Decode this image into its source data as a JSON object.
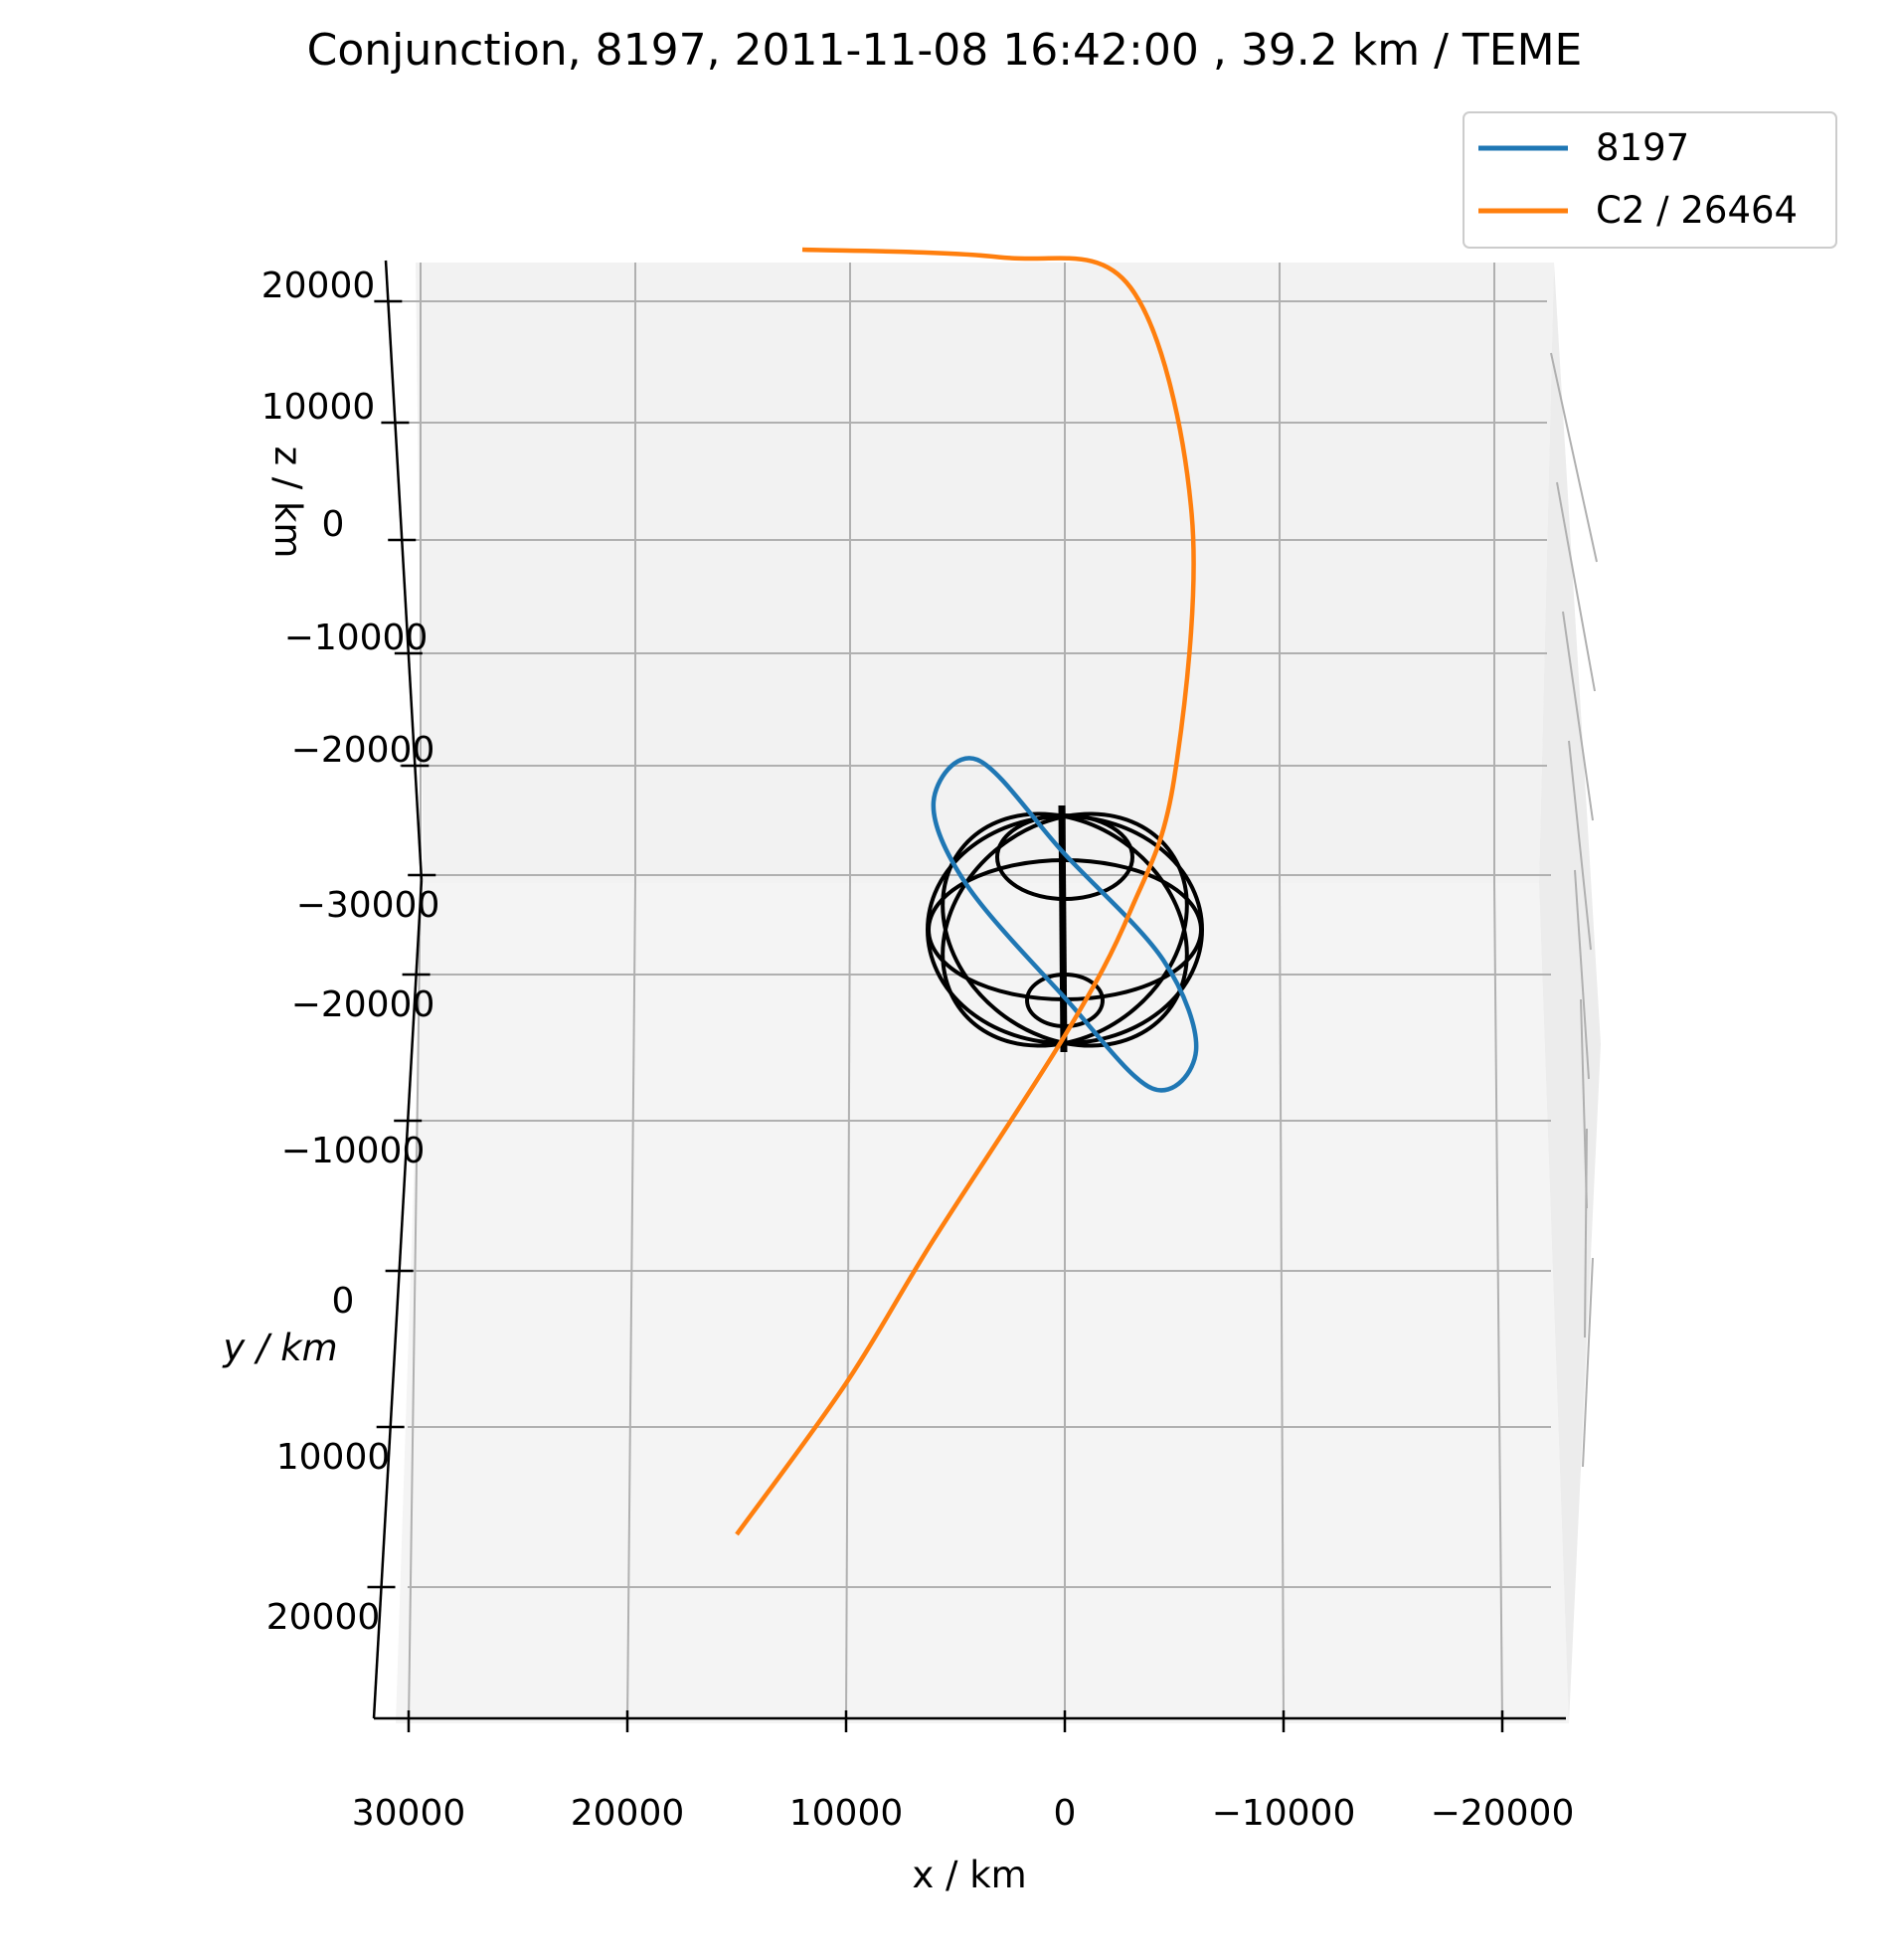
{
  "chart_data": {
    "type": "3d-line",
    "title": "Conjunction, 8197, 2011-11-08 16:42:00 , 39.2 km / TEME",
    "xlabel": "x / km",
    "ylabel": "y / km",
    "zlabel": "z / km",
    "x_ticks": [
      "30000",
      "20000",
      "10000",
      "0",
      "−10000",
      "−20000"
    ],
    "y_ticks": [
      "−30000",
      "−20000",
      "−10000",
      "0",
      "10000",
      "20000"
    ],
    "z_ticks": [
      "20000",
      "10000",
      "0",
      "−10000",
      "−20000"
    ],
    "xlim": [
      30000,
      -22000
    ],
    "ylim": [
      -30000,
      20000
    ],
    "zlim": [
      -20000,
      20000
    ],
    "grid": true,
    "legend_position": "top-right",
    "series": [
      {
        "name": "8197",
        "color": "#1f77b4",
        "description_kind": "closed orbit ellipse",
        "points": [
          [
            6000,
            -3400
          ],
          [
            4500,
            -1200
          ],
          [
            0,
            1800
          ],
          [
            -4000,
            4200
          ],
          [
            -6000,
            3200
          ],
          [
            -4500,
            800
          ],
          [
            0,
            -2000
          ],
          [
            4000,
            -4500
          ],
          [
            6000,
            -3400
          ]
        ]
      },
      {
        "name": "C2 / 26464",
        "color": "#ff7f0e",
        "description_kind": "open trajectory",
        "points": [
          [
            12000,
            -18000
          ],
          [
            3000,
            -17800
          ],
          [
            -3000,
            -17000
          ],
          [
            -5800,
            -11000
          ],
          [
            -5000,
            -4000
          ],
          [
            -3000,
            -500
          ],
          [
            0,
            2800
          ],
          [
            6000,
            8200
          ],
          [
            10000,
            12000
          ],
          [
            15000,
            16000
          ]
        ]
      },
      {
        "name": "",
        "color": "#000000",
        "description_kind": "Earth wireframe"
      }
    ]
  },
  "legend": {
    "entries": [
      {
        "label": "8197",
        "color": "#1f77b4"
      },
      {
        "label": "C2 / 26464",
        "color": "#ff7f0e"
      }
    ]
  }
}
